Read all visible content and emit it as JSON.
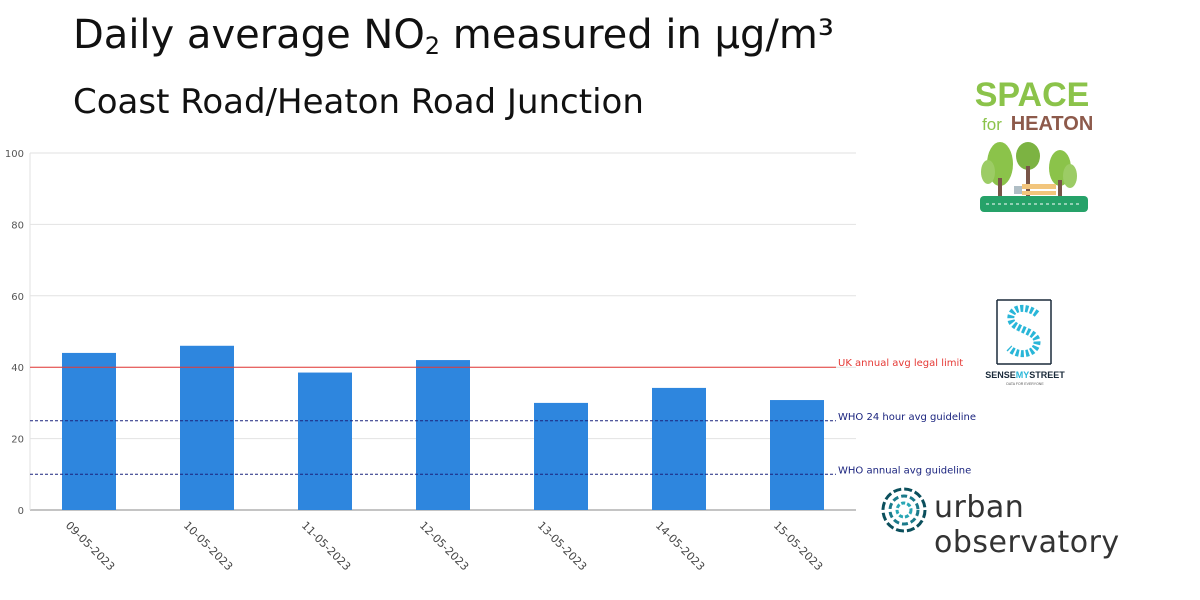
{
  "header": {
    "title_prefix": "Daily average NO",
    "title_sub": "2",
    "title_suffix": " measured in µg/m³",
    "subtitle": "Coast Road/Heaton Road Junction"
  },
  "colors": {
    "bar": "#2e86de",
    "uk_limit": "#e53935",
    "who_line": "#1a237e",
    "grid": "#e2e2e2",
    "axis": "#888888"
  },
  "chart_data": {
    "type": "bar",
    "title": "Daily average NO2 measured in µg/m³",
    "subtitle": "Coast Road/Heaton Road Junction",
    "categories": [
      "09-05-2023",
      "10-05-2023",
      "11-05-2023",
      "12-05-2023",
      "13-05-2023",
      "14-05-2023",
      "15-05-2023"
    ],
    "values": [
      44,
      46,
      38.5,
      42,
      30,
      34.2,
      30.8
    ],
    "ylim": [
      0,
      100
    ],
    "yticks": [
      0,
      20,
      40,
      60,
      80,
      100
    ],
    "grid": true,
    "reference_lines": [
      {
        "label": "UK annual avg legal limit",
        "value": 40,
        "style": "solid",
        "color": "#e53935"
      },
      {
        "label": "WHO 24 hour avg guideline",
        "value": 25,
        "style": "dotted",
        "color": "#1a237e"
      },
      {
        "label": "WHO annual avg guideline",
        "value": 10,
        "style": "dotted",
        "color": "#1a237e"
      }
    ]
  },
  "logos": {
    "space_for_heaton": {
      "line1": "SPACE",
      "line2a": "for",
      "line2b": "HEATON"
    },
    "sensemystreet": {
      "name_a": "SENSE",
      "name_b": "MY",
      "name_c": "STREET",
      "tagline": "DATA FOR EVERYONE"
    },
    "urban_observatory": {
      "name": "urban observatory"
    }
  }
}
